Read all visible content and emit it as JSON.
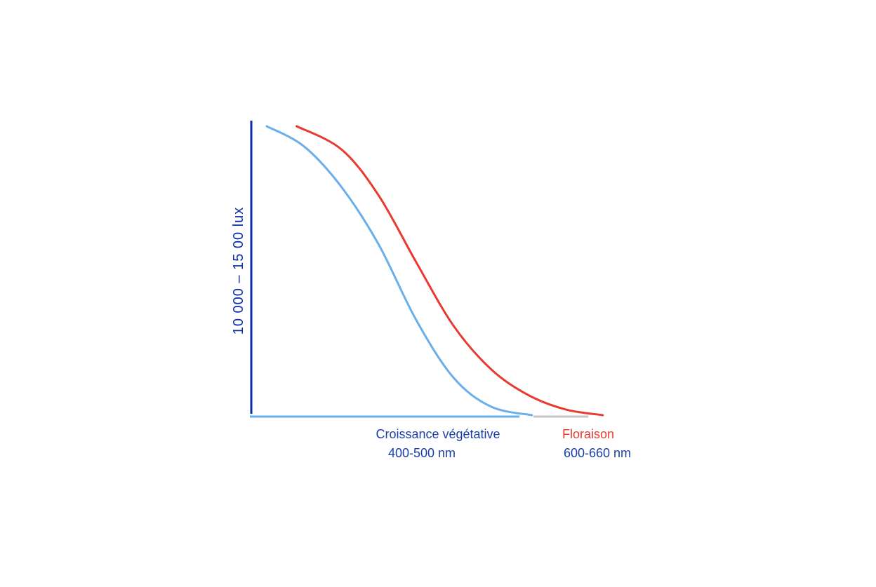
{
  "chart_data": {
    "type": "line",
    "title": "",
    "ylabel": "10 000 – 15  00 lux",
    "xlabel": "",
    "grid": false,
    "legend": "none",
    "series": [
      {
        "name": "Croissance végétative",
        "sublabel": "400-500 nm",
        "color": "#6aaeea",
        "label_color": "#1a3fa8",
        "points": [
          [
            0.0,
            1.0
          ],
          [
            0.1,
            0.93
          ],
          [
            0.2,
            0.79
          ],
          [
            0.3,
            0.59
          ],
          [
            0.4,
            0.33
          ],
          [
            0.5,
            0.13
          ],
          [
            0.6,
            0.03
          ],
          [
            0.71,
            0.0
          ]
        ]
      },
      {
        "name": "Floraison",
        "sublabel": "600-660 nm",
        "color": "#e83a30",
        "label_color": "#e83a30",
        "sublabel_color": "#1a3fa8",
        "points": [
          [
            0.08,
            1.0
          ],
          [
            0.2,
            0.92
          ],
          [
            0.3,
            0.76
          ],
          [
            0.4,
            0.53
          ],
          [
            0.5,
            0.31
          ],
          [
            0.6,
            0.16
          ],
          [
            0.7,
            0.07
          ],
          [
            0.8,
            0.02
          ],
          [
            0.9,
            0.0
          ]
        ]
      }
    ],
    "colors": {
      "y_axis": "#0a2ea8",
      "x_axis": "#6aaeea",
      "x_axis_gray": "#c4c4c4"
    }
  }
}
